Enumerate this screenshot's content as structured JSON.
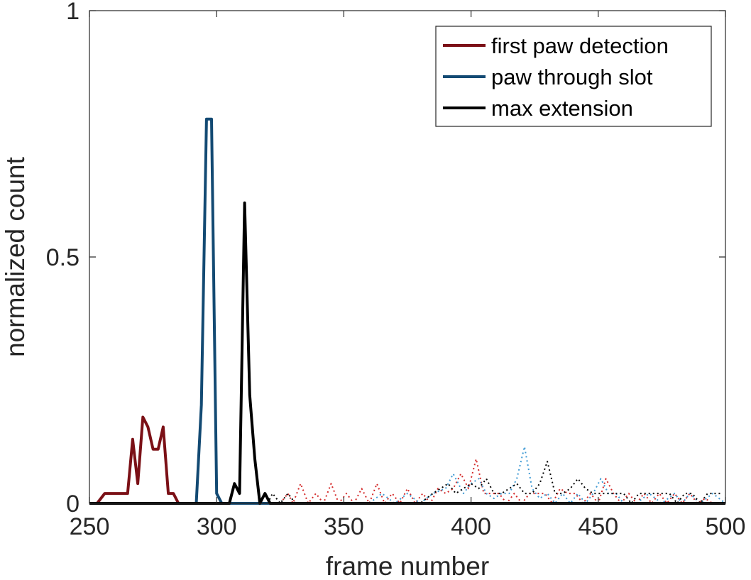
{
  "chart_data": {
    "type": "line",
    "xlabel": "frame number",
    "ylabel": "normalized count",
    "xlim": [
      250,
      500
    ],
    "ylim": [
      0,
      1
    ],
    "xticks": [
      "250",
      "300",
      "350",
      "400",
      "450",
      "500"
    ],
    "yticks": [
      "0",
      "0.5",
      "1"
    ],
    "grid": false,
    "legend_position": "top-right",
    "series": [
      {
        "name": "first paw detection",
        "style": "solid",
        "color": "#7b1016",
        "x": [
          250,
          253,
          256,
          259,
          262,
          265,
          267,
          269,
          271,
          273,
          275,
          277,
          279,
          281,
          283,
          285,
          287,
          289,
          500
        ],
        "y": [
          0,
          0,
          0.02,
          0.02,
          0.02,
          0.02,
          0.13,
          0.04,
          0.175,
          0.155,
          0.11,
          0.11,
          0.155,
          0.02,
          0.02,
          0,
          0,
          0,
          0
        ]
      },
      {
        "name": "paw through slot",
        "style": "solid",
        "color": "#134a73",
        "x": [
          250,
          292,
          294,
          296,
          298,
          300,
          302,
          500
        ],
        "y": [
          0,
          0,
          0.2,
          0.78,
          0.78,
          0.02,
          0,
          0
        ]
      },
      {
        "name": "max extension",
        "style": "solid",
        "color": "#000000",
        "x": [
          250,
          305,
          307,
          309,
          311,
          313,
          315,
          317,
          319,
          321,
          323,
          500
        ],
        "y": [
          0,
          0,
          0.04,
          0.02,
          0.61,
          0.22,
          0.09,
          0,
          0.02,
          0,
          0,
          0
        ]
      },
      {
        "style": "dotted",
        "color": "#d42a2a",
        "x": [
          320,
          325,
          328,
          330,
          333,
          336,
          339,
          342,
          345,
          348,
          351,
          354,
          357,
          360,
          363,
          366,
          369,
          372,
          375,
          378,
          381,
          384,
          387,
          390,
          393,
          396,
          399,
          402,
          405,
          408,
          411,
          414,
          417,
          420,
          423,
          426,
          429,
          432,
          435,
          438,
          441,
          444,
          447,
          450,
          453,
          456,
          459,
          462,
          465,
          468,
          471,
          474,
          477,
          480,
          483,
          486,
          489,
          492,
          495,
          498
        ],
        "y": [
          0,
          0,
          0.02,
          0,
          0.04,
          0,
          0.02,
          0,
          0.04,
          0,
          0.02,
          0,
          0.03,
          0,
          0.04,
          0,
          0.02,
          0,
          0.03,
          0,
          0.02,
          0,
          0.03,
          0.02,
          0.03,
          0.06,
          0.03,
          0.09,
          0.02,
          0.02,
          0.02,
          0,
          0.02,
          0,
          0.02,
          0.02,
          0.02,
          0,
          0.03,
          0.02,
          0.02,
          0,
          0.02,
          0,
          0.05,
          0.02,
          0,
          0.02,
          0,
          0.02,
          0,
          0.02,
          0,
          0.02,
          0,
          0.02,
          0,
          0.01,
          0,
          0
        ]
      },
      {
        "style": "dotted",
        "color": "#3f9ad4",
        "x": [
          320,
          355,
          360,
          365,
          370,
          375,
          380,
          385,
          390,
          393,
          395,
          397,
          400,
          403,
          406,
          409,
          412,
          415,
          418,
          421,
          424,
          427,
          430,
          433,
          436,
          439,
          442,
          445,
          448,
          451,
          454,
          457,
          460,
          465,
          470,
          475,
          480,
          483,
          486,
          490,
          495,
          500
        ],
        "y": [
          0,
          0,
          0,
          0.02,
          0,
          0.02,
          0,
          0.02,
          0.03,
          0.06,
          0.04,
          0.02,
          0.04,
          0.05,
          0.02,
          0.01,
          0.02,
          0.02,
          0.05,
          0.115,
          0.03,
          0.01,
          0.02,
          0,
          0.02,
          0,
          0.02,
          0,
          0.02,
          0.05,
          0.02,
          0.02,
          0,
          0,
          0.02,
          0,
          0.02,
          0,
          0.02,
          0,
          0.02,
          0
        ]
      },
      {
        "style": "dotted",
        "color": "#000000",
        "x": [
          320,
          322,
          325,
          328,
          331,
          380,
          385,
          388,
          391,
          394,
          397,
          400,
          403,
          406,
          409,
          412,
          415,
          418,
          421,
          424,
          427,
          430,
          433,
          436,
          439,
          442,
          445,
          448,
          451,
          454,
          457,
          460,
          463,
          466,
          469,
          472,
          475,
          478,
          481,
          484,
          487,
          490,
          493,
          496,
          499
        ],
        "y": [
          0,
          0.02,
          0,
          0.02,
          0,
          0,
          0.02,
          0.03,
          0.04,
          0.02,
          0.03,
          0.04,
          0.03,
          0.05,
          0.02,
          0.02,
          0.03,
          0.04,
          0.02,
          0.02,
          0.04,
          0.085,
          0.02,
          0.02,
          0.03,
          0.05,
          0.03,
          0.02,
          0.02,
          0.02,
          0.02,
          0.02,
          0,
          0.02,
          0.02,
          0.02,
          0.02,
          0.02,
          0,
          0.02,
          0.02,
          0,
          0.02,
          0.02,
          0.02
        ]
      }
    ]
  }
}
